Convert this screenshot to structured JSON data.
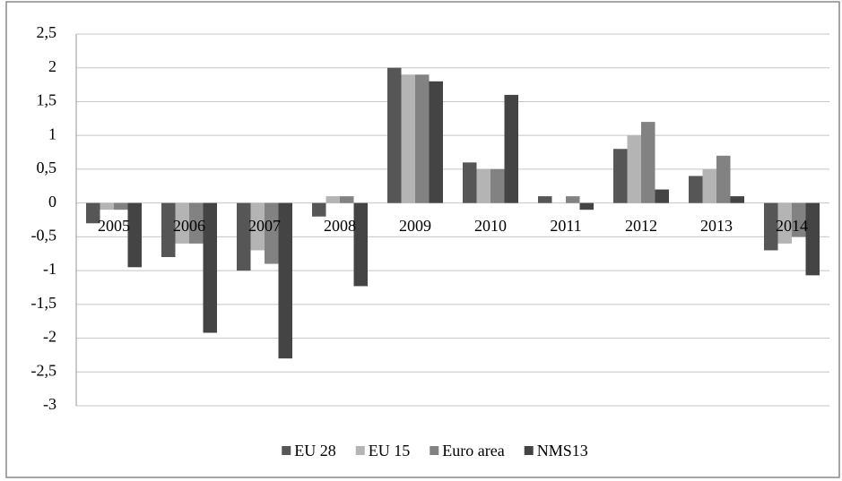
{
  "chart_data": {
    "type": "bar",
    "categories": [
      "2005",
      "2006",
      "2007",
      "2008",
      "2009",
      "2010",
      "2011",
      "2012",
      "2013",
      "2014"
    ],
    "series": [
      {
        "name": "EU 28",
        "color": "#565656",
        "values": [
          -0.3,
          -0.8,
          -1.0,
          -0.2,
          2.0,
          0.6,
          0.1,
          0.8,
          0.4,
          -0.7
        ]
      },
      {
        "name": "EU 15",
        "color": "#b4b4b4",
        "values": [
          -0.1,
          -0.6,
          -0.7,
          0.1,
          1.9,
          0.5,
          0.0,
          1.0,
          0.5,
          -0.6
        ]
      },
      {
        "name": "Euro area",
        "color": "#828282",
        "values": [
          -0.1,
          -0.6,
          -0.9,
          0.1,
          1.9,
          0.5,
          0.1,
          1.2,
          0.7,
          -0.5
        ]
      },
      {
        "name": "NMS13",
        "color": "#444444",
        "values": [
          -0.95,
          -1.92,
          -2.3,
          -1.23,
          1.8,
          1.6,
          -0.1,
          0.2,
          0.1,
          -1.07
        ]
      }
    ],
    "ylim": [
      -3,
      2.5
    ],
    "yticks": [
      -3,
      {
        "value": -2.5,
        "label": "-2,5"
      },
      -2,
      {
        "value": -1.5,
        "label": "-1,5"
      },
      -1,
      {
        "value": -0.5,
        "label": "-0,5"
      },
      0,
      {
        "value": 0.5,
        "label": "0,5"
      },
      1,
      {
        "value": 1.5,
        "label": "1,5"
      },
      2,
      {
        "value": 2.5,
        "label": "2,5"
      }
    ],
    "grid": true,
    "legend": "bottom"
  }
}
